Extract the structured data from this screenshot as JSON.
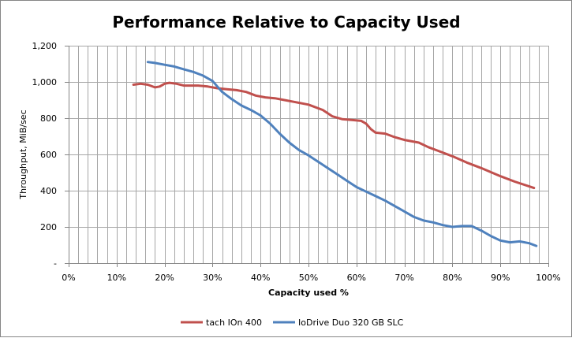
{
  "chart_data": {
    "type": "line",
    "title": "Performance  Relative  to Capacity  Used",
    "xlabel": "Capacity  used %",
    "ylabel": "Throughput, MiB/sec",
    "xlim": [
      0,
      100
    ],
    "ylim": [
      0,
      1200
    ],
    "x_ticks": [
      0,
      10,
      20,
      30,
      40,
      50,
      60,
      70,
      80,
      90,
      100
    ],
    "x_tick_labels": [
      "0%",
      "10%",
      "20%",
      "30%",
      "40%",
      "50%",
      "60%",
      "70%",
      "80%",
      "90%",
      "100%"
    ],
    "y_ticks": [
      0,
      200,
      400,
      600,
      800,
      1000,
      1200
    ],
    "y_tick_labels": [
      "-",
      "200",
      "400",
      "600",
      "800",
      "1,000",
      "1,200"
    ],
    "grid": true,
    "legend_position": "bottom",
    "series": [
      {
        "name": "tach IOn 400",
        "color": "#c0504d",
        "points": [
          [
            13.5,
            985
          ],
          [
            15,
            990
          ],
          [
            16.5,
            985
          ],
          [
            18,
            970
          ],
          [
            19,
            975
          ],
          [
            20,
            990
          ],
          [
            21,
            995
          ],
          [
            22.5,
            990
          ],
          [
            24,
            980
          ],
          [
            25.5,
            980
          ],
          [
            27,
            980
          ],
          [
            29,
            975
          ],
          [
            31,
            965
          ],
          [
            33,
            960
          ],
          [
            35,
            955
          ],
          [
            37,
            945
          ],
          [
            39,
            925
          ],
          [
            41,
            915
          ],
          [
            43,
            910
          ],
          [
            45,
            900
          ],
          [
            47,
            890
          ],
          [
            50,
            875
          ],
          [
            53,
            845
          ],
          [
            55,
            810
          ],
          [
            57,
            795
          ],
          [
            59,
            790
          ],
          [
            61,
            785
          ],
          [
            62,
            770
          ],
          [
            63,
            740
          ],
          [
            64,
            720
          ],
          [
            66,
            715
          ],
          [
            68,
            695
          ],
          [
            70,
            680
          ],
          [
            73,
            665
          ],
          [
            75,
            640
          ],
          [
            77,
            620
          ],
          [
            80,
            590
          ],
          [
            83,
            555
          ],
          [
            86,
            525
          ],
          [
            90,
            480
          ],
          [
            93,
            450
          ],
          [
            97,
            415
          ]
        ]
      },
      {
        "name": "IoDrive Duo 320 GB SLC",
        "color": "#4f81bd",
        "points": [
          [
            16.5,
            1110
          ],
          [
            18,
            1105
          ],
          [
            20,
            1095
          ],
          [
            22,
            1085
          ],
          [
            24,
            1070
          ],
          [
            26,
            1055
          ],
          [
            28,
            1035
          ],
          [
            30,
            1005
          ],
          [
            31,
            975
          ],
          [
            32,
            945
          ],
          [
            34,
            905
          ],
          [
            36,
            870
          ],
          [
            38,
            845
          ],
          [
            40,
            815
          ],
          [
            42,
            770
          ],
          [
            44,
            715
          ],
          [
            46,
            665
          ],
          [
            48,
            625
          ],
          [
            50,
            595
          ],
          [
            52,
            560
          ],
          [
            54,
            525
          ],
          [
            56,
            490
          ],
          [
            58,
            455
          ],
          [
            60,
            420
          ],
          [
            62,
            395
          ],
          [
            64,
            370
          ],
          [
            66,
            345
          ],
          [
            68,
            315
          ],
          [
            70,
            285
          ],
          [
            72,
            255
          ],
          [
            74,
            235
          ],
          [
            76,
            225
          ],
          [
            78,
            210
          ],
          [
            80,
            200
          ],
          [
            82,
            205
          ],
          [
            84,
            205
          ],
          [
            86,
            180
          ],
          [
            88,
            150
          ],
          [
            90,
            125
          ],
          [
            92,
            115
          ],
          [
            94,
            120
          ],
          [
            96,
            110
          ],
          [
            97.5,
            95
          ]
        ]
      }
    ]
  }
}
